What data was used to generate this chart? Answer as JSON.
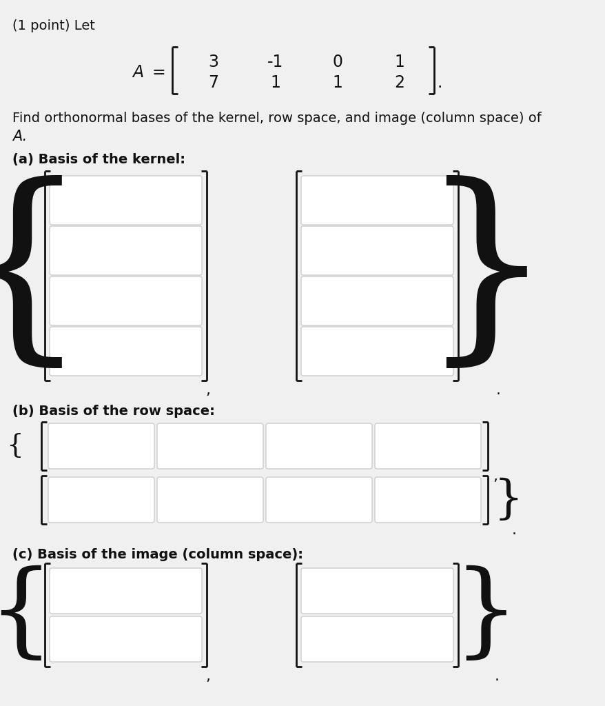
{
  "background_color": "#f0f0f0",
  "box_fill": "#ffffff",
  "box_edge": "#cccccc",
  "text_color": "#111111",
  "bracket_color": "#111111",
  "font_size_main": 14,
  "font_size_matrix": 17,
  "title_line1": "(1 point) Let",
  "matrix_row1": [
    "3",
    "-1",
    "0",
    "1"
  ],
  "matrix_row2": [
    "7",
    "1",
    "1",
    "2"
  ],
  "description_line1": "Find orthonormal bases of the kernel, row space, and image (column space) of",
  "description_line2": "A.",
  "part_a_label": "(a) Basis of the kernel:",
  "part_b_label": "(b) Basis of the row space:",
  "part_c_label": "(c) Basis of the image (column space):"
}
